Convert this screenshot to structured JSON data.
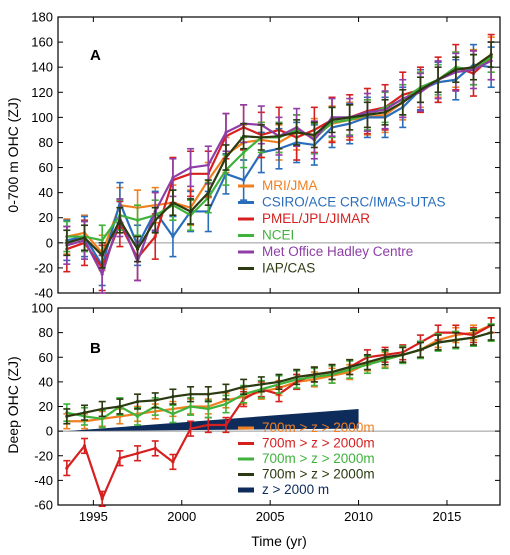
{
  "chart_data": [
    {
      "type": "line",
      "panel_label": "A",
      "ylabel": "0-700 m OHC (ZJ)",
      "xlabel": "",
      "xlim": [
        1993,
        2018
      ],
      "ylim": [
        -40,
        180
      ],
      "yticks": [
        -40,
        -20,
        0,
        20,
        40,
        60,
        80,
        100,
        120,
        140,
        160,
        180
      ],
      "xticks": [
        1995,
        2000,
        2005,
        2010,
        2015
      ],
      "legend_position": "center-right",
      "x": [
        1993.5,
        1994.5,
        1995.5,
        1996.5,
        1997.5,
        1998.5,
        1999.5,
        2000.5,
        2001.5,
        2002.5,
        2003.5,
        2004.5,
        2005.5,
        2006.5,
        2007.5,
        2008.5,
        2009.5,
        2010.5,
        2011.5,
        2012.5,
        2013.5,
        2014.5,
        2015.5,
        2016.5,
        2017.5
      ],
      "series": [
        {
          "name": "MRI/JMA",
          "color": "#f07f20",
          "err": 14,
          "values": [
            5,
            8,
            -8,
            30,
            28,
            30,
            32,
            28,
            50,
            70,
            80,
            82,
            80,
            88,
            85,
            95,
            98,
            100,
            102,
            112,
            122,
            130,
            138,
            140,
            150
          ]
        },
        {
          "name": "CSIRO/ACE CRC/IMAS-UTAS",
          "color": "#2a6ebb",
          "err": 16,
          "values": [
            2,
            5,
            -18,
            32,
            -2,
            25,
            5,
            25,
            25,
            55,
            50,
            72,
            75,
            80,
            78,
            92,
            95,
            100,
            100,
            108,
            122,
            128,
            130,
            142,
            140
          ]
        },
        {
          "name": "PMEL/JPL/JIMAR",
          "color": "#d62020",
          "err": 18,
          "values": [
            -5,
            0,
            -20,
            15,
            -12,
            5,
            50,
            55,
            55,
            85,
            92,
            86,
            90,
            84,
            90,
            98,
            100,
            105,
            108,
            118,
            122,
            130,
            140,
            135,
            148
          ]
        },
        {
          "name": "NCEI",
          "color": "#3fb23c",
          "err": 12,
          "values": [
            5,
            5,
            2,
            22,
            18,
            22,
            30,
            22,
            36,
            58,
            72,
            84,
            84,
            90,
            83,
            96,
            98,
            102,
            108,
            114,
            124,
            130,
            140,
            138,
            148
          ]
        },
        {
          "name": "Met Office Hadley Centre",
          "color": "#8e3ea6",
          "err": 15,
          "values": [
            -2,
            2,
            -25,
            20,
            -15,
            25,
            52,
            60,
            62,
            88,
            95,
            94,
            85,
            92,
            82,
            100,
            100,
            104,
            106,
            115,
            120,
            130,
            136,
            138,
            145
          ]
        },
        {
          "name": "IAP/CAS",
          "color": "#2b3a10",
          "err": 10,
          "values": [
            0,
            4,
            -10,
            18,
            -5,
            18,
            32,
            25,
            40,
            68,
            85,
            84,
            85,
            88,
            86,
            98,
            100,
            102,
            104,
            112,
            122,
            130,
            138,
            140,
            150
          ]
        }
      ]
    },
    {
      "type": "line",
      "panel_label": "B",
      "ylabel": "Deep OHC (ZJ)",
      "xlabel": "Time (yr)",
      "xlim": [
        1993,
        2018
      ],
      "ylim": [
        -60,
        100
      ],
      "yticks": [
        -60,
        -40,
        -20,
        0,
        20,
        40,
        60,
        80,
        100
      ],
      "xticks": [
        1995,
        2000,
        2005,
        2010,
        2015
      ],
      "legend_position": "bottom-right",
      "x": [
        1993.5,
        1994.5,
        1995.5,
        1996.5,
        1997.5,
        1998.5,
        1999.5,
        2000.5,
        2001.5,
        2002.5,
        2003.5,
        2004.5,
        2005.5,
        2006.5,
        2007.5,
        2008.5,
        2009.5,
        2010.5,
        2011.5,
        2012.5,
        2013.5,
        2014.5,
        2015.5,
        2016.5,
        2017.5
      ],
      "series": [
        {
          "name": "700m > z > 2000m",
          "color": "#f07f20",
          "err": 6,
          "values": [
            8,
            8,
            10,
            12,
            14,
            16,
            18,
            20,
            20,
            25,
            28,
            32,
            35,
            40,
            42,
            45,
            48,
            55,
            58,
            62,
            66,
            74,
            78,
            80,
            86
          ]
        },
        {
          "name": "700m > z > 2000m",
          "color": "#d62020",
          "err": 6,
          "values": [
            -30,
            -12,
            -55,
            -22,
            -18,
            -14,
            -25,
            2,
            5,
            5,
            26,
            34,
            30,
            40,
            46,
            48,
            52,
            60,
            62,
            64,
            72,
            80,
            80,
            78,
            86
          ]
        },
        {
          "name": "700m > z > 2000m",
          "color": "#3fb23c",
          "err": 7,
          "values": [
            15,
            12,
            10,
            20,
            12,
            20,
            14,
            20,
            18,
            22,
            30,
            34,
            38,
            42,
            44,
            46,
            50,
            54,
            58,
            62,
            66,
            72,
            74,
            76,
            80
          ]
        },
        {
          "name": "700m > z > 2000m",
          "color": "#2b3a10",
          "err": 6,
          "values": [
            12,
            15,
            18,
            20,
            24,
            25,
            28,
            30,
            30,
            32,
            36,
            38,
            40,
            44,
            46,
            48,
            52,
            56,
            60,
            62,
            66,
            72,
            74,
            76,
            80
          ]
        }
      ],
      "band": {
        "name": "z > 2000 m",
        "color": "#0d2b5b",
        "x": [
          1993.5,
          2010
        ],
        "upper": [
          0,
          18
        ],
        "lower": [
          0,
          2
        ]
      }
    }
  ]
}
